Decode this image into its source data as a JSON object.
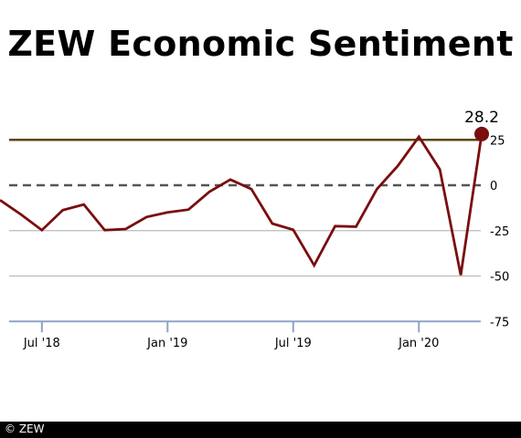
{
  "chart_data": {
    "type": "line",
    "title": "ZEW Economic Sentiment",
    "x": [
      "2018-05",
      "2018-06",
      "2018-07",
      "2018-08",
      "2018-09",
      "2018-10",
      "2018-11",
      "2018-12",
      "2019-01",
      "2019-02",
      "2019-03",
      "2019-04",
      "2019-05",
      "2019-06",
      "2019-07",
      "2019-08",
      "2019-09",
      "2019-10",
      "2019-11",
      "2019-12",
      "2020-01",
      "2020-02",
      "2020-03",
      "2020-04"
    ],
    "series": [
      {
        "values": [
          -8.2,
          -16.1,
          -24.7,
          -13.7,
          -10.6,
          -24.7,
          -24.1,
          -17.5,
          -15.0,
          -13.4,
          -3.6,
          3.1,
          -2.1,
          -21.1,
          -24.5,
          -44.1,
          -22.5,
          -22.8,
          -2.1,
          10.7,
          26.7,
          8.7,
          -49.5,
          28.2
        ]
      }
    ],
    "last_value_label": "28.2",
    "reference_line": 25,
    "zero_line": 0,
    "y_ticks": [
      25,
      0,
      -25,
      -50,
      -75
    ],
    "y_tick_labels": [
      "25",
      "0",
      "-25",
      "-50",
      "-75"
    ],
    "x_tick_labels": [
      "Jul '18",
      "Jan '19",
      "Jul '19",
      "Jan '20"
    ],
    "ylim": [
      -75,
      28.2
    ],
    "colors": {
      "line": "#7a0e0e",
      "marker": "#7a0e0e",
      "reference": "#5a4608",
      "zero": "#555555",
      "grid": "#bbbbbb",
      "axis": "#8fa3c7"
    },
    "grid": true,
    "copyright": "© ZEW"
  }
}
